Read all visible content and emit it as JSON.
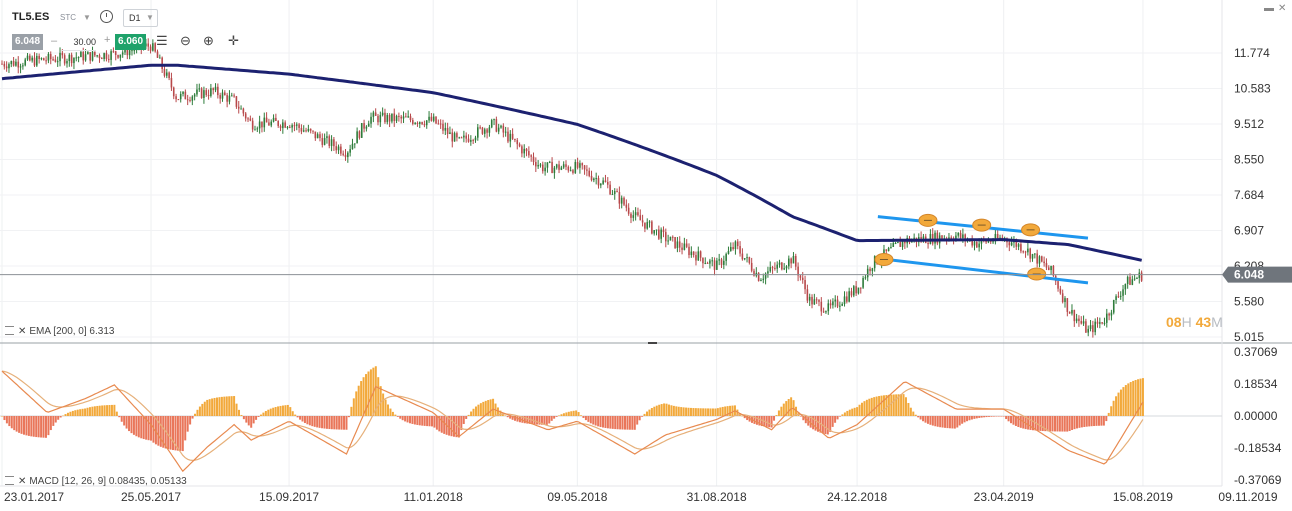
{
  "toolbar": {
    "symbol": "TL5.ES",
    "market": "STC",
    "timeframe": "D1",
    "bid": "6.048",
    "quantity": "30.00",
    "ask": "6.060"
  },
  "countdown": {
    "hours": "08",
    "hours_unit": "H",
    "minutes": "43",
    "minutes_unit": "M"
  },
  "indicators": {
    "ema_label": "EMA [200, 0] 6.313",
    "macd_label": "MACD [12, 26, 9] 0.08435, 0.05133"
  },
  "colors": {
    "ema": "#1c2170",
    "channel": "#1e96ee",
    "highlight": "#f2a93b",
    "candle_up": "#2d7c3a",
    "candle_down": "#b8484a",
    "hist_pos": "#f2a93b",
    "hist_neg": "#e9765a",
    "macd_line": "#e88a50",
    "signal_line": "#e6b07a",
    "price_label": "#6f757c"
  },
  "chart_data": {
    "type": "candlestick",
    "x_dates": [
      "23.01.2017",
      "25.05.2017",
      "15.09.2017",
      "11.01.2018",
      "09.05.2018",
      "31.08.2018",
      "24.12.2018",
      "23.04.2019",
      "15.08.2019",
      "09.11.2019"
    ],
    "price_ticks": [
      "11.774",
      "10.583",
      "9.512",
      "8.550",
      "7.684",
      "6.907",
      "6.208",
      "5.580",
      "5.015"
    ],
    "last_price": "6.048",
    "macd_ticks": [
      "0.37069",
      "0.18534",
      "0.00000",
      "-0.18534",
      "-0.37069"
    ],
    "price_path": [
      [
        "23.01.2017",
        11.4
      ],
      [
        "01.03.2017",
        11.55
      ],
      [
        "25.04.2017",
        11.75
      ],
      [
        "25.05.2017",
        12.05
      ],
      [
        "05.06.2017",
        11.1
      ],
      [
        "15.06.2017",
        10.3
      ],
      [
        "15.07.2017",
        10.5
      ],
      [
        "01.08.2017",
        10.2
      ],
      [
        "15.08.2017",
        9.52
      ],
      [
        "15.09.2017",
        9.55
      ],
      [
        "01.11.2017",
        8.75
      ],
      [
        "20.11.2017",
        9.7
      ],
      [
        "11.01.2018",
        9.6
      ],
      [
        "01.02.2018",
        9.0
      ],
      [
        "01.03.2018",
        9.52
      ],
      [
        "20.03.2018",
        8.95
      ],
      [
        "10.04.2018",
        8.35
      ],
      [
        "09.05.2018",
        8.35
      ],
      [
        "01.06.2018",
        7.95
      ],
      [
        "25.06.2018",
        7.2
      ],
      [
        "20.07.2018",
        6.75
      ],
      [
        "31.08.2018",
        6.2
      ],
      [
        "15.09.2018",
        6.6
      ],
      [
        "05.10.2018",
        6.0
      ],
      [
        "01.11.2018",
        6.35
      ],
      [
        "15.11.2018",
        5.6
      ],
      [
        "01.12.2018",
        5.45
      ],
      [
        "24.12.2018",
        5.8
      ],
      [
        "05.01.2019",
        6.25
      ],
      [
        "01.02.2019",
        6.7
      ],
      [
        "15.03.2019",
        6.8
      ],
      [
        "01.04.2019",
        6.65
      ],
      [
        "23.04.2019",
        6.75
      ],
      [
        "10.05.2019",
        6.55
      ],
      [
        "01.06.2019",
        6.1
      ],
      [
        "15.06.2019",
        5.45
      ],
      [
        "01.07.2019",
        5.1
      ],
      [
        "15.07.2019",
        5.3
      ],
      [
        "01.08.2019",
        5.9
      ],
      [
        "15.08.2019",
        6.05
      ]
    ],
    "ema_200_path": [
      [
        "23.01.2017",
        10.9
      ],
      [
        "25.05.2017",
        11.35
      ],
      [
        "15.06.2017",
        11.35
      ],
      [
        "15.09.2017",
        11.05
      ],
      [
        "11.01.2018",
        10.45
      ],
      [
        "09.05.2018",
        9.5
      ],
      [
        "31.08.2018",
        8.15
      ],
      [
        "01.11.2018",
        7.2
      ],
      [
        "24.12.2018",
        6.7
      ],
      [
        "23.04.2019",
        6.72
      ],
      [
        "15.06.2019",
        6.62
      ],
      [
        "15.08.2019",
        6.31
      ]
    ],
    "channel_upper": [
      [
        "10.01.2019",
        7.2
      ],
      [
        "01.07.2019",
        6.75
      ]
    ],
    "channel_lower": [
      [
        "10.01.2019",
        6.35
      ],
      [
        "01.07.2019",
        5.9
      ]
    ],
    "highlights": [
      [
        "20.02.2019",
        7.12
      ],
      [
        "05.04.2019",
        7.02
      ],
      [
        "15.05.2019",
        6.92
      ],
      [
        "15.01.2019",
        6.33
      ],
      [
        "20.05.2019",
        6.06
      ]
    ],
    "macd_line_path": [
      [
        "23.01.2017",
        0.26
      ],
      [
        "01.03.2017",
        0.02
      ],
      [
        "01.04.2017",
        0.1
      ],
      [
        "25.04.2017",
        0.18
      ],
      [
        "25.05.2017",
        -0.05
      ],
      [
        "20.06.2017",
        -0.32
      ],
      [
        "10.07.2017",
        -0.18
      ],
      [
        "01.08.2017",
        -0.05
      ],
      [
        "15.08.2017",
        -0.14
      ],
      [
        "15.09.2017",
        -0.03
      ],
      [
        "01.11.2017",
        -0.22
      ],
      [
        "25.11.2017",
        0.17
      ],
      [
        "11.01.2018",
        0.02
      ],
      [
        "01.02.2018",
        -0.12
      ],
      [
        "01.03.2018",
        0.04
      ],
      [
        "15.04.2018",
        -0.08
      ],
      [
        "09.05.2018",
        -0.03
      ],
      [
        "25.06.2018",
        -0.22
      ],
      [
        "20.07.2018",
        -0.11
      ],
      [
        "31.08.2018",
        -0.02
      ],
      [
        "15.09.2018",
        0.03
      ],
      [
        "15.10.2018",
        -0.08
      ],
      [
        "01.11.2018",
        0.05
      ],
      [
        "01.12.2018",
        -0.13
      ],
      [
        "24.12.2018",
        -0.05
      ],
      [
        "01.02.2019",
        0.2
      ],
      [
        "15.03.2019",
        0.04
      ],
      [
        "23.04.2019",
        0.04
      ],
      [
        "15.06.2019",
        -0.2
      ],
      [
        "15.07.2019",
        -0.28
      ],
      [
        "15.08.2019",
        0.08
      ]
    ]
  }
}
